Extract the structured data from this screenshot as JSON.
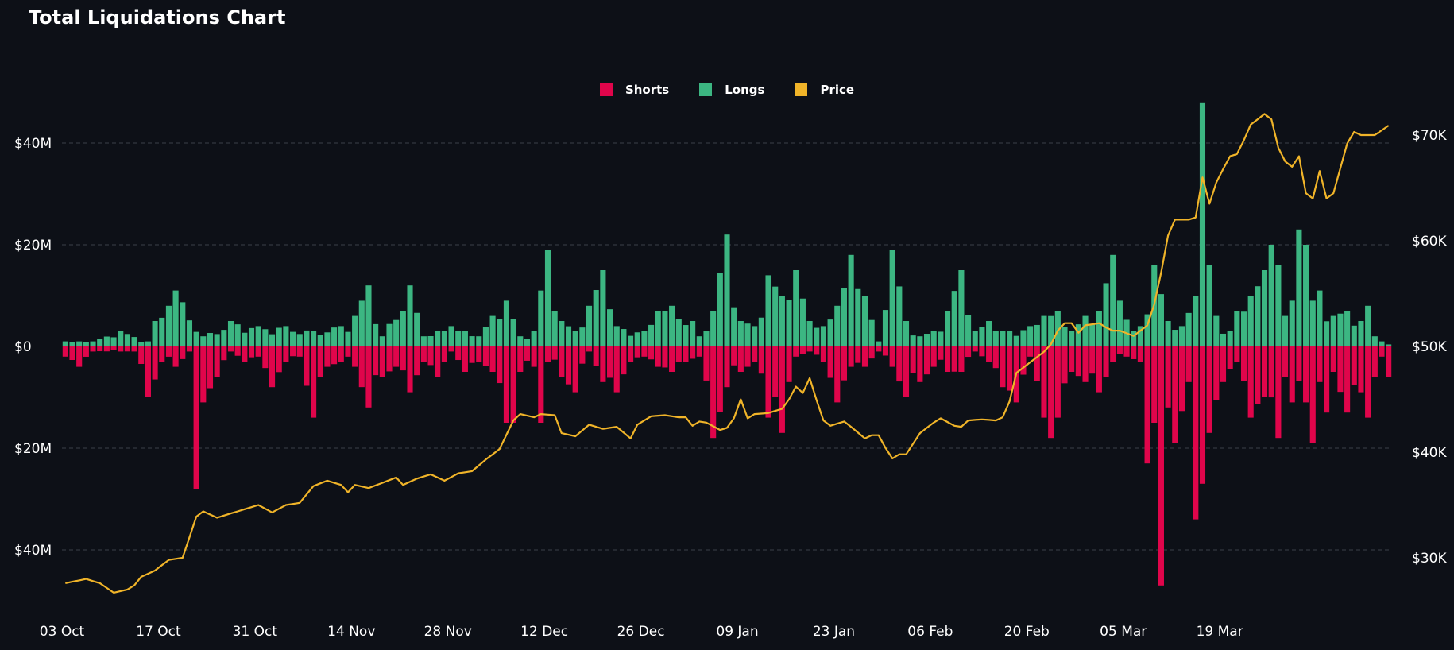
{
  "page": {
    "title": "Total Liquidations Chart"
  },
  "colors": {
    "shorts": "#e0054b",
    "longs": "#3cb682",
    "price": "#f0b429",
    "background": "#0d1017",
    "grid": "#3a3f48",
    "text": "#ffffff"
  },
  "chart_data": {
    "type": "bar+line",
    "title": "Total Liquidations Chart",
    "legend": [
      {
        "name": "Shorts",
        "color": "#e0054b"
      },
      {
        "name": "Longs",
        "color": "#3cb682"
      },
      {
        "name": "Price",
        "color": "#f0b429"
      }
    ],
    "legend_position": "top-center",
    "left_axis": {
      "ylim": [
        -53,
        53
      ],
      "unit": "M",
      "ticks": [
        40,
        20,
        0,
        -20,
        -40
      ],
      "tick_labels": [
        "$40M",
        "$20M",
        "$0",
        "$20M",
        "$40M"
      ]
    },
    "right_axis": {
      "ylim": [
        26,
        72
      ],
      "unit": "K",
      "ticks": [
        70,
        60,
        50,
        40,
        30
      ],
      "tick_labels": [
        "$70K",
        "$60K",
        "$50K",
        "$40K",
        "$30K"
      ]
    },
    "x_ticks": [
      {
        "label": "03 Oct",
        "index": 0
      },
      {
        "label": "17 Oct",
        "index": 14
      },
      {
        "label": "31 Oct",
        "index": 28
      },
      {
        "label": "14 Nov",
        "index": 42
      },
      {
        "label": "28 Nov",
        "index": 56
      },
      {
        "label": "12 Dec",
        "index": 70
      },
      {
        "label": "26 Dec",
        "index": 84
      },
      {
        "label": "09 Jan",
        "index": 98
      },
      {
        "label": "23 Jan",
        "index": 112
      },
      {
        "label": "06 Feb",
        "index": 126
      },
      {
        "label": "20 Feb",
        "index": 140
      },
      {
        "label": "05 Mar",
        "index": 154
      },
      {
        "label": "19 Mar",
        "index": 168
      }
    ],
    "keypoints": {
      "longs": [
        [
          0,
          1
        ],
        [
          4,
          1
        ],
        [
          8,
          3
        ],
        [
          12,
          1
        ],
        [
          13,
          5
        ],
        [
          15,
          8
        ],
        [
          16,
          11
        ],
        [
          20,
          2
        ],
        [
          24,
          5
        ],
        [
          28,
          4
        ],
        [
          32,
          4
        ],
        [
          36,
          3
        ],
        [
          40,
          4
        ],
        [
          42,
          6
        ],
        [
          44,
          12
        ],
        [
          46,
          2
        ],
        [
          50,
          12
        ],
        [
          52,
          2
        ],
        [
          56,
          4
        ],
        [
          58,
          3
        ],
        [
          60,
          2
        ],
        [
          62,
          6
        ],
        [
          64,
          9
        ],
        [
          66,
          2
        ],
        [
          68,
          3
        ],
        [
          70,
          19
        ],
        [
          72,
          5
        ],
        [
          74,
          3
        ],
        [
          76,
          8
        ],
        [
          78,
          15
        ],
        [
          80,
          4
        ],
        [
          84,
          3
        ],
        [
          86,
          7
        ],
        [
          88,
          8
        ],
        [
          91,
          5
        ],
        [
          92,
          2
        ],
        [
          94,
          7
        ],
        [
          96,
          22
        ],
        [
          98,
          5
        ],
        [
          100,
          4
        ],
        [
          102,
          14
        ],
        [
          104,
          10
        ],
        [
          106,
          15
        ],
        [
          108,
          5
        ],
        [
          110,
          4
        ],
        [
          112,
          8
        ],
        [
          114,
          18
        ],
        [
          116,
          10
        ],
        [
          118,
          1
        ],
        [
          120,
          19
        ],
        [
          122,
          5
        ],
        [
          124,
          2
        ],
        [
          126,
          3
        ],
        [
          128,
          7
        ],
        [
          130,
          15
        ],
        [
          132,
          3
        ],
        [
          134,
          5
        ],
        [
          136,
          3
        ],
        [
          140,
          4
        ],
        [
          142,
          6
        ],
        [
          144,
          7
        ],
        [
          146,
          3
        ],
        [
          148,
          6
        ],
        [
          150,
          7
        ],
        [
          152,
          18
        ],
        [
          153,
          9
        ],
        [
          155,
          3
        ],
        [
          156,
          4
        ],
        [
          158,
          16
        ],
        [
          160,
          5
        ],
        [
          162,
          4
        ],
        [
          164,
          10
        ],
        [
          165,
          48
        ],
        [
          166,
          16
        ],
        [
          167,
          6
        ],
        [
          169,
          3
        ],
        [
          170,
          7
        ],
        [
          172,
          10
        ],
        [
          174,
          15
        ],
        [
          175,
          20
        ],
        [
          176,
          16
        ],
        [
          177,
          6
        ],
        [
          178,
          9
        ],
        [
          179,
          23
        ],
        [
          180,
          20
        ],
        [
          181,
          9
        ],
        [
          182,
          11
        ],
        [
          184,
          6
        ],
        [
          186,
          7
        ],
        [
          188,
          5
        ],
        [
          189,
          8
        ],
        [
          190,
          2
        ],
        [
          191,
          1
        ]
      ],
      "shorts": [
        [
          0,
          2
        ],
        [
          2,
          4
        ],
        [
          4,
          1
        ],
        [
          8,
          1
        ],
        [
          10,
          1
        ],
        [
          12,
          10
        ],
        [
          14,
          3
        ],
        [
          16,
          4
        ],
        [
          18,
          1
        ],
        [
          19,
          28
        ],
        [
          20,
          11
        ],
        [
          22,
          6
        ],
        [
          24,
          1
        ],
        [
          26,
          3
        ],
        [
          28,
          2
        ],
        [
          30,
          8
        ],
        [
          32,
          3
        ],
        [
          34,
          2
        ],
        [
          36,
          14
        ],
        [
          38,
          4
        ],
        [
          40,
          3
        ],
        [
          42,
          4
        ],
        [
          44,
          12
        ],
        [
          46,
          6
        ],
        [
          48,
          4
        ],
        [
          50,
          9
        ],
        [
          52,
          3
        ],
        [
          54,
          6
        ],
        [
          56,
          1
        ],
        [
          58,
          5
        ],
        [
          60,
          3
        ],
        [
          62,
          5
        ],
        [
          64,
          15
        ],
        [
          65,
          15
        ],
        [
          66,
          5
        ],
        [
          68,
          4
        ],
        [
          69,
          15
        ],
        [
          70,
          3
        ],
        [
          72,
          6
        ],
        [
          74,
          9
        ],
        [
          76,
          1
        ],
        [
          78,
          7
        ],
        [
          80,
          9
        ],
        [
          82,
          3
        ],
        [
          84,
          2
        ],
        [
          86,
          4
        ],
        [
          88,
          5
        ],
        [
          90,
          3
        ],
        [
          92,
          2
        ],
        [
          94,
          18
        ],
        [
          96,
          8
        ],
        [
          98,
          5
        ],
        [
          100,
          3
        ],
        [
          102,
          14
        ],
        [
          103,
          10
        ],
        [
          104,
          17
        ],
        [
          105,
          7
        ],
        [
          106,
          2
        ],
        [
          108,
          1
        ],
        [
          110,
          3
        ],
        [
          112,
          11
        ],
        [
          114,
          4
        ],
        [
          116,
          4
        ],
        [
          118,
          1
        ],
        [
          120,
          4
        ],
        [
          122,
          10
        ],
        [
          124,
          7
        ],
        [
          126,
          4
        ],
        [
          128,
          5
        ],
        [
          130,
          5
        ],
        [
          132,
          1
        ],
        [
          134,
          3
        ],
        [
          136,
          8
        ],
        [
          138,
          11
        ],
        [
          140,
          2
        ],
        [
          142,
          14
        ],
        [
          143,
          18
        ],
        [
          144,
          14
        ],
        [
          146,
          5
        ],
        [
          148,
          7
        ],
        [
          150,
          9
        ],
        [
          152,
          3
        ],
        [
          154,
          2
        ],
        [
          156,
          3
        ],
        [
          157,
          23
        ],
        [
          158,
          15
        ],
        [
          159,
          47
        ],
        [
          160,
          12
        ],
        [
          161,
          19
        ],
        [
          163,
          7
        ],
        [
          164,
          34
        ],
        [
          165,
          27
        ],
        [
          166,
          17
        ],
        [
          168,
          7
        ],
        [
          170,
          3
        ],
        [
          172,
          14
        ],
        [
          174,
          10
        ],
        [
          176,
          18
        ],
        [
          177,
          6
        ],
        [
          178,
          11
        ],
        [
          180,
          11
        ],
        [
          181,
          19
        ],
        [
          182,
          7
        ],
        [
          183,
          13
        ],
        [
          184,
          5
        ],
        [
          186,
          13
        ],
        [
          188,
          9
        ],
        [
          189,
          14
        ],
        [
          190,
          6
        ],
        [
          191,
          2
        ],
        [
          192,
          6
        ]
      ],
      "price": [
        [
          0,
          27.6
        ],
        [
          3,
          28.0
        ],
        [
          5,
          27.6
        ],
        [
          7,
          26.7
        ],
        [
          9,
          27.0
        ],
        [
          10,
          27.4
        ],
        [
          11,
          28.2
        ],
        [
          13,
          28.8
        ],
        [
          15,
          29.8
        ],
        [
          17,
          30.0
        ],
        [
          19,
          33.9
        ],
        [
          20,
          34.4
        ],
        [
          22,
          33.8
        ],
        [
          25,
          34.4
        ],
        [
          28,
          35.0
        ],
        [
          30,
          34.3
        ],
        [
          32,
          35.0
        ],
        [
          34,
          35.2
        ],
        [
          36,
          36.8
        ],
        [
          38,
          37.3
        ],
        [
          40,
          36.9
        ],
        [
          41,
          36.2
        ],
        [
          42,
          36.9
        ],
        [
          44,
          36.6
        ],
        [
          46,
          37.1
        ],
        [
          48,
          37.6
        ],
        [
          49,
          36.9
        ],
        [
          51,
          37.5
        ],
        [
          53,
          37.9
        ],
        [
          55,
          37.3
        ],
        [
          57,
          38.0
        ],
        [
          59,
          38.2
        ],
        [
          61,
          39.3
        ],
        [
          63,
          40.3
        ],
        [
          65,
          43.0
        ],
        [
          66,
          43.6
        ],
        [
          68,
          43.3
        ],
        [
          69,
          43.6
        ],
        [
          71,
          43.5
        ],
        [
          72,
          41.8
        ],
        [
          74,
          41.5
        ],
        [
          76,
          42.6
        ],
        [
          78,
          42.2
        ],
        [
          80,
          42.4
        ],
        [
          82,
          41.3
        ],
        [
          83,
          42.6
        ],
        [
          85,
          43.4
        ],
        [
          87,
          43.5
        ],
        [
          89,
          43.3
        ],
        [
          90,
          43.3
        ],
        [
          91,
          42.5
        ],
        [
          92,
          42.9
        ],
        [
          93,
          42.8
        ],
        [
          95,
          42.1
        ],
        [
          96,
          42.3
        ],
        [
          97,
          43.2
        ],
        [
          98,
          45.0
        ],
        [
          99,
          43.2
        ],
        [
          100,
          43.6
        ],
        [
          102,
          43.7
        ],
        [
          104,
          44.1
        ],
        [
          105,
          45.0
        ],
        [
          106,
          46.2
        ],
        [
          107,
          45.6
        ],
        [
          108,
          47.0
        ],
        [
          109,
          44.9
        ],
        [
          110,
          43.0
        ],
        [
          111,
          42.5
        ],
        [
          113,
          42.9
        ],
        [
          114,
          42.4
        ],
        [
          116,
          41.3
        ],
        [
          117,
          41.6
        ],
        [
          118,
          41.6
        ],
        [
          119,
          40.4
        ],
        [
          120,
          39.4
        ],
        [
          121,
          39.8
        ],
        [
          122,
          39.8
        ],
        [
          124,
          41.8
        ],
        [
          126,
          42.8
        ],
        [
          127,
          43.2
        ],
        [
          129,
          42.5
        ],
        [
          130,
          42.4
        ],
        [
          131,
          43.0
        ],
        [
          133,
          43.1
        ],
        [
          135,
          43.0
        ],
        [
          136,
          43.3
        ],
        [
          137,
          44.8
        ],
        [
          138,
          47.5
        ],
        [
          140,
          48.5
        ],
        [
          142,
          49.5
        ],
        [
          143,
          50.2
        ],
        [
          144,
          51.5
        ],
        [
          145,
          52.2
        ],
        [
          146,
          52.2
        ],
        [
          147,
          51.3
        ],
        [
          148,
          52.0
        ],
        [
          150,
          52.2
        ],
        [
          151,
          51.8
        ],
        [
          152,
          51.5
        ],
        [
          153,
          51.5
        ],
        [
          155,
          51.0
        ],
        [
          156,
          51.5
        ],
        [
          157,
          52.0
        ],
        [
          158,
          54.0
        ],
        [
          159,
          57.0
        ],
        [
          160,
          60.5
        ],
        [
          161,
          62.0
        ],
        [
          163,
          62.0
        ],
        [
          164,
          62.2
        ],
        [
          165,
          66.0
        ],
        [
          166,
          63.5
        ],
        [
          167,
          65.5
        ],
        [
          168,
          66.8
        ],
        [
          169,
          68.0
        ],
        [
          170,
          68.2
        ],
        [
          171,
          69.5
        ],
        [
          172,
          71.0
        ],
        [
          173,
          71.5
        ],
        [
          174,
          72.0
        ],
        [
          175,
          71.5
        ],
        [
          176,
          68.8
        ],
        [
          177,
          67.5
        ],
        [
          178,
          67.0
        ],
        [
          179,
          68.0
        ],
        [
          180,
          64.5
        ],
        [
          181,
          64.0
        ],
        [
          182,
          66.6
        ],
        [
          183,
          64.0
        ],
        [
          184,
          64.5
        ],
        [
          186,
          69.2
        ],
        [
          187,
          70.3
        ],
        [
          188,
          70.0
        ],
        [
          190,
          70.0
        ],
        [
          192,
          70.9
        ]
      ]
    }
  }
}
